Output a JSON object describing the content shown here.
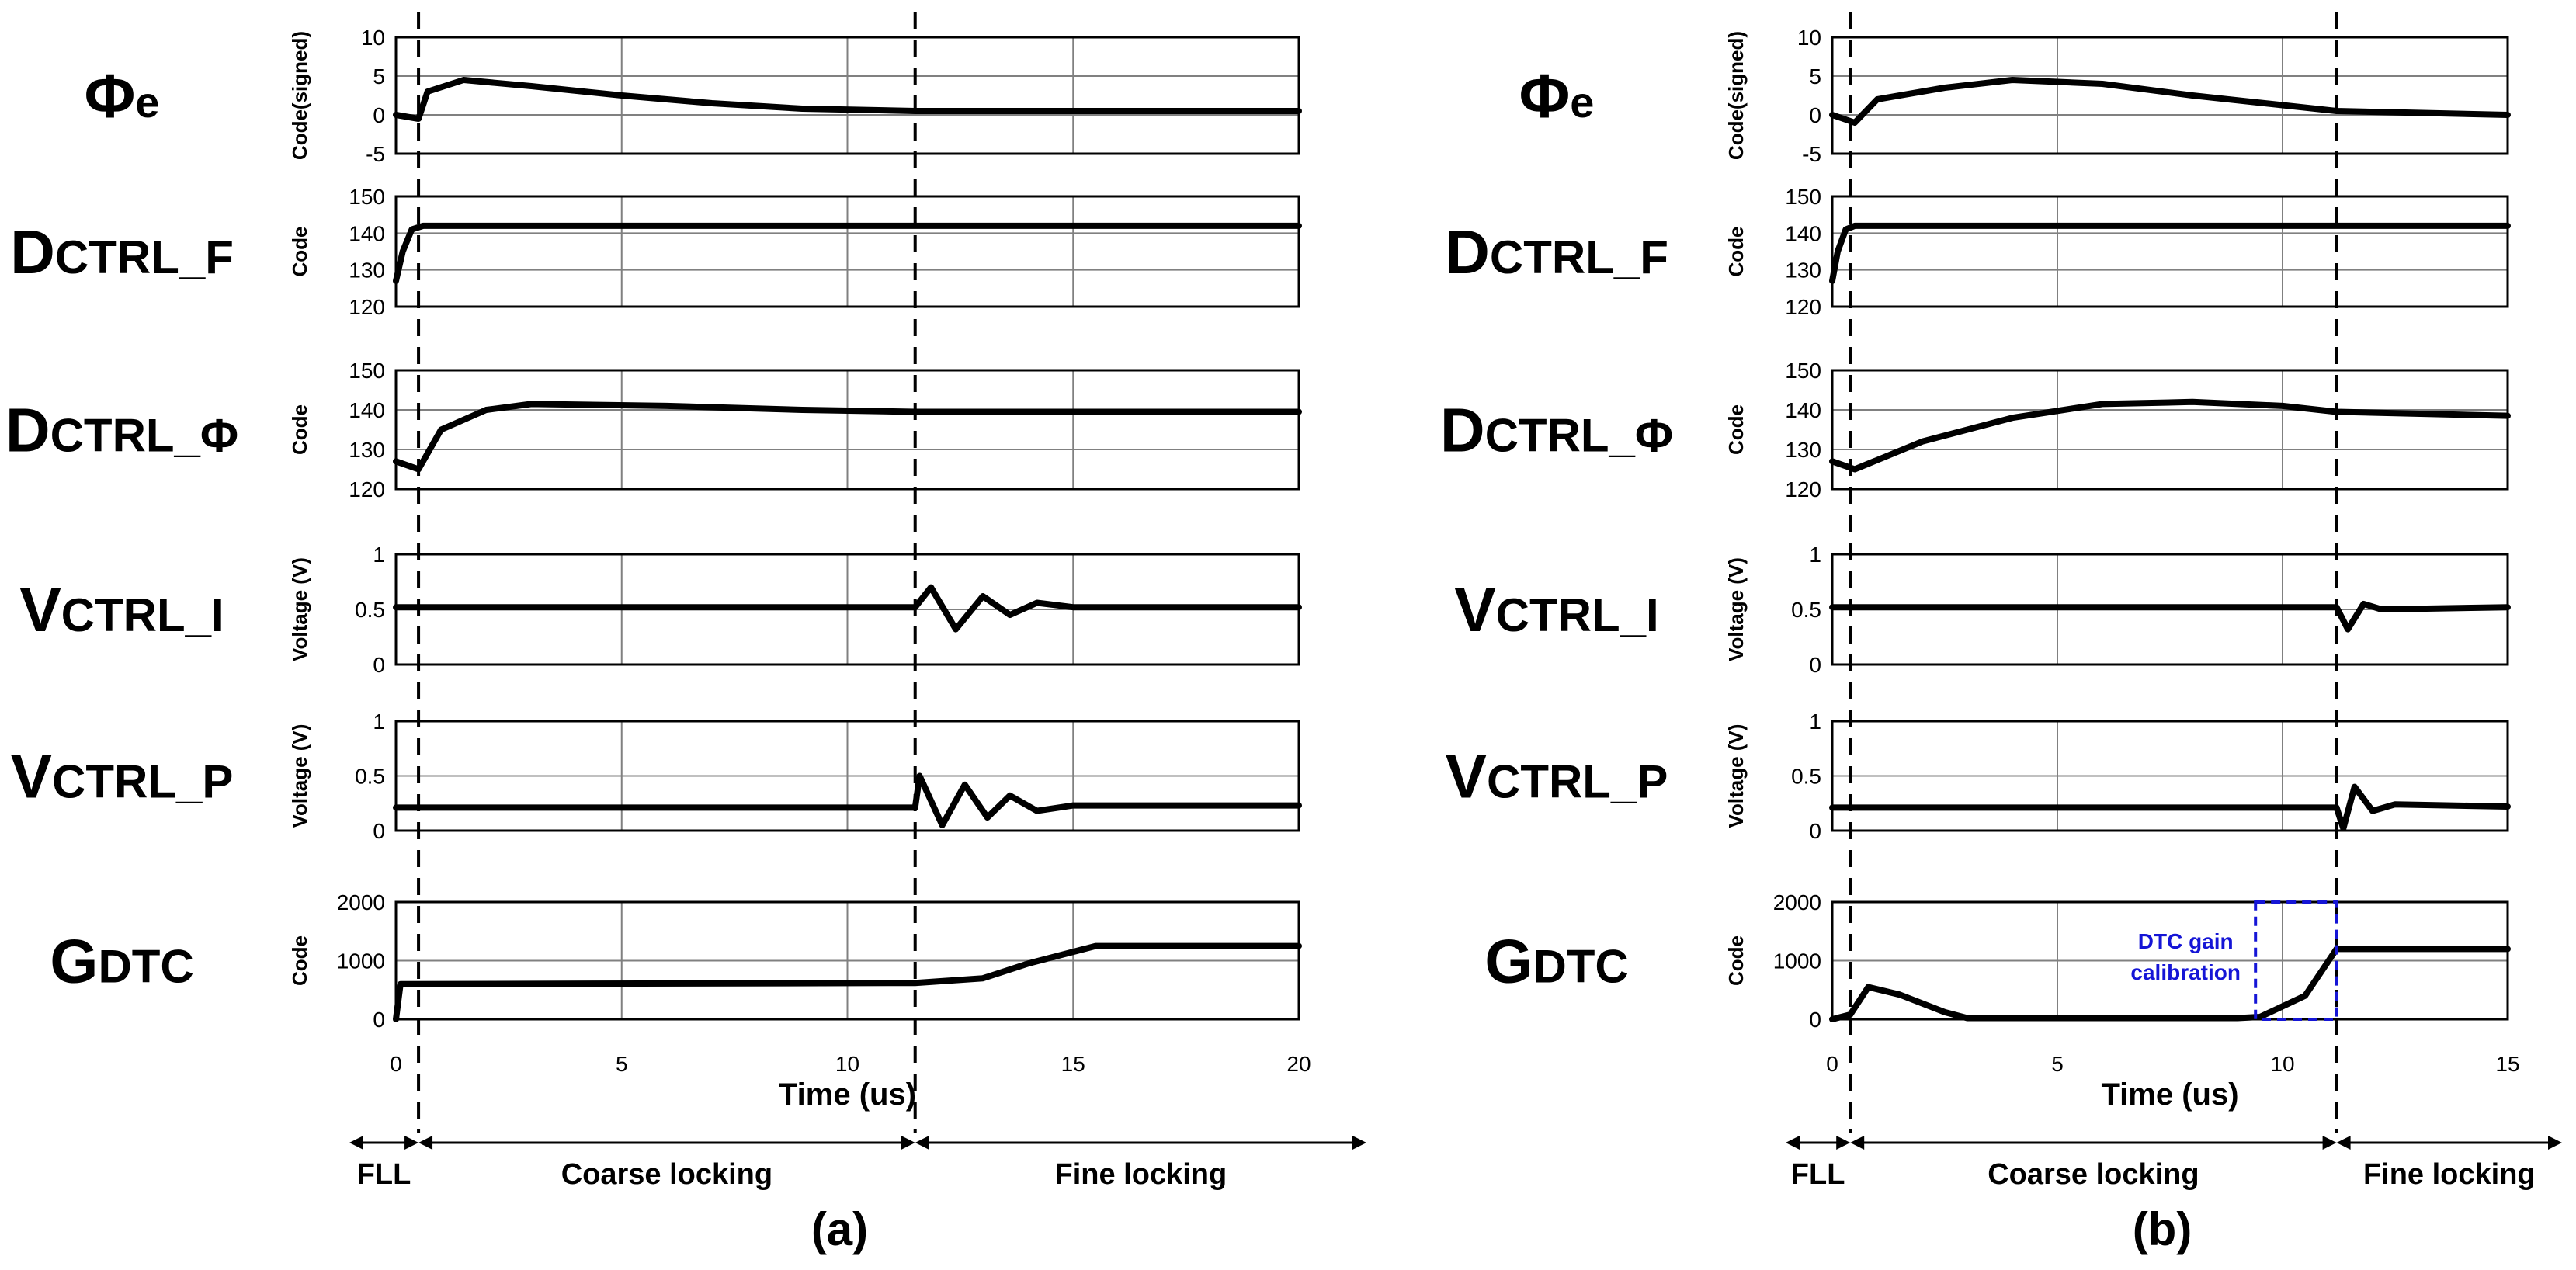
{
  "figure": {
    "time_label": "Time (us)",
    "annotation_color": "#1515d6",
    "line_color": "#000000",
    "grid_color": "#808080"
  },
  "panels": [
    {
      "id": "a",
      "caption": "(a)",
      "xlim": [
        0,
        20
      ],
      "xticks": [
        "0",
        "5",
        "10",
        "15",
        "20"
      ],
      "phase_boundaries_us": [
        0.5,
        11.5
      ],
      "phases": [
        "FLL",
        "Coarse locking",
        "Fine locking"
      ]
    },
    {
      "id": "b",
      "caption": "(b)",
      "xlim": [
        0,
        15
      ],
      "xticks": [
        "0",
        "5",
        "10",
        "15"
      ],
      "phase_boundaries_us": [
        0.4,
        11.2
      ],
      "phases": [
        "FLL",
        "Coarse locking",
        "Fine locking"
      ],
      "annotation": {
        "line1": "DTC gain",
        "line2": "calibration",
        "x_range_us": [
          9.4,
          11.2
        ]
      }
    }
  ],
  "signals": [
    {
      "name": "Φ",
      "sub": "e",
      "ylabel": "Code(signed)",
      "yticks": [
        "10",
        "5",
        "0",
        "-5"
      ],
      "ylim": [
        -5,
        10
      ]
    },
    {
      "name": "D",
      "sub": "CTRL_F",
      "ylabel": "Code",
      "yticks": [
        "150",
        "140",
        "130",
        "120"
      ],
      "ylim": [
        120,
        150
      ]
    },
    {
      "name": "D",
      "sub": "CTRL_Φ",
      "ylabel": "Code",
      "yticks": [
        "150",
        "140",
        "130",
        "120"
      ],
      "ylim": [
        120,
        150
      ]
    },
    {
      "name": "V",
      "sub": "CTRL_I",
      "ylabel": "Voltage (V)",
      "yticks": [
        "1",
        "0.5",
        "0"
      ],
      "ylim": [
        0,
        1
      ]
    },
    {
      "name": "V",
      "sub": "CTRL_P",
      "ylabel": "Voltage (V)",
      "yticks": [
        "1",
        "0.5",
        "0"
      ],
      "ylim": [
        0,
        1
      ]
    },
    {
      "name": "G",
      "sub": "DTC",
      "ylabel": "Code",
      "yticks": [
        "2000",
        "1000",
        "0"
      ],
      "ylim": [
        0,
        2000
      ]
    }
  ],
  "chart_data": [
    {
      "type": "line",
      "panel": "a",
      "title": "(a)",
      "xlabel": "Time (us)",
      "xlim": [
        0,
        20
      ],
      "series": [
        {
          "name": "Φe",
          "ylabel": "Code(signed)",
          "ylim": [
            -5,
            10
          ],
          "x": [
            0,
            0.5,
            0.7,
            1.5,
            3,
            5,
            7,
            9,
            11.5,
            20
          ],
          "y": [
            0,
            -0.5,
            3,
            4.5,
            3.7,
            2.5,
            1.5,
            0.8,
            0.5,
            0.5
          ]
        },
        {
          "name": "DCTRL_F",
          "ylabel": "Code",
          "ylim": [
            120,
            150
          ],
          "x": [
            0,
            0.15,
            0.35,
            0.6,
            20
          ],
          "y": [
            127,
            135,
            141,
            142,
            142
          ]
        },
        {
          "name": "DCTRL_Φ",
          "ylabel": "Code",
          "ylim": [
            120,
            150
          ],
          "x": [
            0,
            0.5,
            1,
            2,
            3,
            6,
            9,
            11.5,
            20
          ],
          "y": [
            127,
            125,
            135,
            140,
            141.5,
            141,
            140,
            139.5,
            139.5
          ]
        },
        {
          "name": "VCTRL_I",
          "ylabel": "Voltage (V)",
          "ylim": [
            0,
            1
          ],
          "x": [
            0,
            11.5,
            11.85,
            12.4,
            13.0,
            13.6,
            14.2,
            15,
            20
          ],
          "y": [
            0.52,
            0.52,
            0.7,
            0.32,
            0.62,
            0.45,
            0.56,
            0.52,
            0.52
          ]
        },
        {
          "name": "VCTRL_P",
          "ylabel": "Voltage (V)",
          "ylim": [
            0,
            1
          ],
          "x": [
            0,
            11.5,
            11.6,
            12.1,
            12.6,
            13.1,
            13.6,
            14.2,
            15,
            20
          ],
          "y": [
            0.21,
            0.21,
            0.5,
            0.05,
            0.42,
            0.12,
            0.32,
            0.18,
            0.23,
            0.23
          ]
        },
        {
          "name": "GDTC",
          "ylabel": "Code",
          "ylim": [
            0,
            2000
          ],
          "x": [
            0,
            0.1,
            0.2,
            11.5,
            13,
            14,
            15.5,
            20
          ],
          "y": [
            0,
            600,
            600,
            620,
            700,
            950,
            1250,
            1250
          ]
        }
      ]
    },
    {
      "type": "line",
      "panel": "b",
      "title": "(b)",
      "xlabel": "Time (us)",
      "xlim": [
        0,
        15
      ],
      "series": [
        {
          "name": "Φe",
          "ylabel": "Code(signed)",
          "ylim": [
            -5,
            10
          ],
          "x": [
            0,
            0.5,
            1,
            2.5,
            4,
            6,
            8,
            11.2,
            15
          ],
          "y": [
            0,
            -1,
            2,
            3.5,
            4.5,
            4,
            2.5,
            0.5,
            0
          ]
        },
        {
          "name": "DCTRL_F",
          "ylabel": "Code",
          "ylim": [
            120,
            150
          ],
          "x": [
            0,
            0.12,
            0.3,
            0.5,
            15
          ],
          "y": [
            127,
            135,
            141,
            142,
            142
          ]
        },
        {
          "name": "DCTRL_Φ",
          "ylabel": "Code",
          "ylim": [
            120,
            150
          ],
          "x": [
            0,
            0.5,
            2,
            4,
            6,
            8,
            10,
            11.2,
            15
          ],
          "y": [
            127,
            125,
            132,
            138,
            141.5,
            142,
            141,
            139.5,
            138.5
          ]
        },
        {
          "name": "VCTRL_I",
          "ylabel": "Voltage (V)",
          "ylim": [
            0,
            1
          ],
          "x": [
            0,
            11.2,
            11.45,
            11.8,
            12.2,
            15
          ],
          "y": [
            0.52,
            0.52,
            0.32,
            0.55,
            0.5,
            0.52
          ]
        },
        {
          "name": "VCTRL_P",
          "ylabel": "Voltage (V)",
          "ylim": [
            0,
            1
          ],
          "x": [
            0,
            11.2,
            11.35,
            11.6,
            12.0,
            12.5,
            15
          ],
          "y": [
            0.21,
            0.21,
            0.02,
            0.4,
            0.18,
            0.24,
            0.22
          ]
        },
        {
          "name": "GDTC",
          "ylabel": "Code",
          "ylim": [
            0,
            2000
          ],
          "x": [
            0,
            0.4,
            0.8,
            1.5,
            2.5,
            3,
            9,
            9.5,
            10.5,
            11.2,
            15
          ],
          "y": [
            0,
            80,
            550,
            420,
            120,
            20,
            20,
            40,
            400,
            1200,
            1200
          ]
        }
      ]
    }
  ]
}
